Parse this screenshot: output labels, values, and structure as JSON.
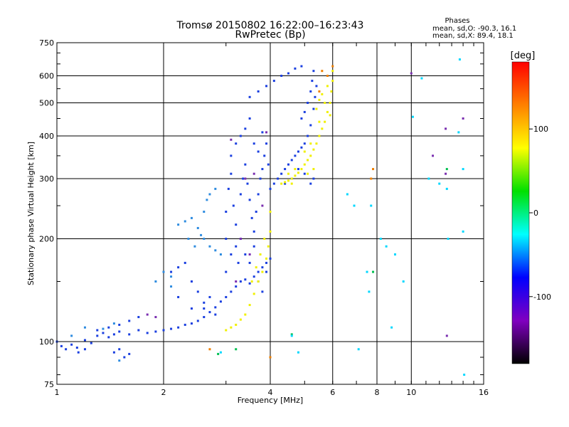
{
  "chart_data": {
    "type": "scatter",
    "title": "Tromsø 20150802 16:22:00–16:23:43",
    "subtitle": "RwPretec (Bp)",
    "xlabel": "Frequency [MHz]",
    "ylabel": "Stationary phase Virtual Height [km]",
    "xscale": "log",
    "yscale": "log",
    "xlim": [
      1,
      16
    ],
    "ylim": [
      75,
      750
    ],
    "xticks": [
      1,
      2,
      4,
      6,
      8,
      10,
      16
    ],
    "yticks": [
      75,
      100,
      200,
      300,
      400,
      500,
      600,
      750
    ],
    "grid": true,
    "phase_info": {
      "title": "Phases",
      "line1": "mean, sd,O: -90.3, 16.1",
      "line2": "mean, sd,X:  89.4, 18.1"
    },
    "colorbar": {
      "label": "[deg]",
      "range": [
        -180,
        180
      ],
      "ticks": [
        100,
        0,
        -100
      ],
      "colors": [
        "#ff0000",
        "#ff8000",
        "#ffff00",
        "#00e000",
        "#00ffff",
        "#0000ff",
        "#8000c0",
        "#000000"
      ]
    },
    "series": [
      {
        "phase_deg": -110,
        "color": "#1a3fe0",
        "points": [
          [
            1.0,
            100
          ],
          [
            1.03,
            97
          ],
          [
            1.06,
            95
          ],
          [
            1.1,
            98
          ],
          [
            1.14,
            96
          ],
          [
            1.2,
            101
          ],
          [
            1.25,
            99
          ],
          [
            1.3,
            104
          ],
          [
            1.35,
            106
          ],
          [
            1.4,
            103
          ],
          [
            1.45,
            105
          ],
          [
            1.5,
            107
          ],
          [
            1.6,
            105
          ],
          [
            1.7,
            108
          ],
          [
            1.8,
            106
          ],
          [
            1.9,
            107
          ],
          [
            2.0,
            108
          ],
          [
            2.1,
            109
          ],
          [
            2.2,
            110
          ],
          [
            2.3,
            112
          ],
          [
            2.4,
            113
          ],
          [
            2.5,
            115
          ],
          [
            2.6,
            118
          ],
          [
            2.7,
            122
          ],
          [
            2.8,
            126
          ],
          [
            2.9,
            131
          ],
          [
            3.0,
            135
          ],
          [
            3.1,
            140
          ],
          [
            3.2,
            145
          ],
          [
            3.3,
            150
          ],
          [
            3.4,
            152
          ],
          [
            3.5,
            148
          ],
          [
            3.6,
            155
          ],
          [
            3.7,
            160
          ],
          [
            3.8,
            165
          ],
          [
            3.9,
            170
          ],
          [
            4.0,
            175
          ],
          [
            3.0,
            200
          ],
          [
            3.0,
            240
          ],
          [
            3.05,
            280
          ],
          [
            3.1,
            310
          ],
          [
            3.1,
            350
          ],
          [
            3.15,
            250
          ],
          [
            3.2,
            220
          ],
          [
            3.2,
            190
          ],
          [
            3.25,
            170
          ],
          [
            3.3,
            270
          ],
          [
            3.35,
            300
          ],
          [
            3.4,
            330
          ],
          [
            3.45,
            290
          ],
          [
            3.5,
            260
          ],
          [
            3.55,
            230
          ],
          [
            3.6,
            210
          ],
          [
            3.65,
            240
          ],
          [
            3.7,
            270
          ],
          [
            3.75,
            300
          ],
          [
            3.8,
            320
          ],
          [
            3.85,
            350
          ],
          [
            3.9,
            380
          ],
          [
            3.95,
            330
          ],
          [
            3.3,
            400
          ],
          [
            3.4,
            420
          ],
          [
            3.5,
            450
          ],
          [
            3.6,
            380
          ],
          [
            3.7,
            360
          ],
          [
            3.8,
            410
          ],
          [
            3.2,
            380
          ],
          [
            3.0,
            160
          ],
          [
            3.1,
            180
          ],
          [
            3.3,
            200
          ],
          [
            3.4,
            180
          ],
          [
            3.5,
            170
          ],
          [
            3.6,
            190
          ],
          [
            3.7,
            150
          ],
          [
            3.8,
            140
          ],
          [
            3.9,
            160
          ],
          [
            4.0,
            280
          ],
          [
            4.1,
            290
          ],
          [
            4.2,
            300
          ],
          [
            4.3,
            310
          ],
          [
            4.4,
            320
          ],
          [
            4.5,
            330
          ],
          [
            4.6,
            340
          ],
          [
            4.7,
            350
          ],
          [
            4.8,
            360
          ],
          [
            4.9,
            370
          ],
          [
            5.0,
            380
          ],
          [
            5.1,
            400
          ],
          [
            5.2,
            430
          ],
          [
            5.3,
            480
          ],
          [
            5.35,
            520
          ],
          [
            5.4,
            560
          ],
          [
            5.1,
            500
          ],
          [
            5.2,
            540
          ],
          [
            5.25,
            580
          ],
          [
            5.3,
            620
          ],
          [
            4.9,
            450
          ],
          [
            5.0,
            470
          ],
          [
            3.5,
            520
          ],
          [
            3.7,
            540
          ],
          [
            3.9,
            560
          ],
          [
            4.1,
            580
          ],
          [
            4.3,
            600
          ],
          [
            4.5,
            610
          ],
          [
            4.7,
            630
          ],
          [
            4.9,
            640
          ],
          [
            2.1,
            160
          ],
          [
            2.2,
            165
          ],
          [
            2.3,
            170
          ],
          [
            2.4,
            150
          ],
          [
            2.5,
            140
          ],
          [
            2.6,
            130
          ],
          [
            2.7,
            135
          ],
          [
            2.2,
            135
          ],
          [
            2.4,
            125
          ],
          [
            2.6,
            125
          ],
          [
            2.8,
            120
          ],
          [
            1.6,
            115
          ],
          [
            1.7,
            118
          ],
          [
            1.5,
            112
          ],
          [
            1.4,
            110
          ],
          [
            1.3,
            108
          ],
          [
            1.2,
            95
          ],
          [
            1.15,
            93
          ],
          [
            1.45,
            93
          ],
          [
            1.5,
            95
          ],
          [
            1.55,
            90
          ],
          [
            1.6,
            92
          ],
          [
            5.2,
            290
          ],
          [
            5.3,
            300
          ],
          [
            5.0,
            310
          ],
          [
            4.8,
            320
          ],
          [
            4.6,
            300
          ],
          [
            4.4,
            290
          ]
        ]
      },
      {
        "phase_deg": -70,
        "color": "#2e8ce0",
        "points": [
          [
            2.2,
            220
          ],
          [
            2.3,
            225
          ],
          [
            2.4,
            230
          ],
          [
            2.5,
            215
          ],
          [
            2.6,
            200
          ],
          [
            2.7,
            190
          ],
          [
            2.8,
            185
          ],
          [
            2.9,
            180
          ],
          [
            2.35,
            200
          ],
          [
            2.45,
            190
          ],
          [
            2.55,
            205
          ],
          [
            2.6,
            240
          ],
          [
            2.7,
            270
          ],
          [
            2.8,
            280
          ],
          [
            2.65,
            260
          ],
          [
            2.0,
            160
          ],
          [
            2.1,
            155
          ],
          [
            1.1,
            104
          ],
          [
            1.2,
            110
          ],
          [
            1.35,
            109
          ],
          [
            1.45,
            113
          ],
          [
            1.5,
            88
          ],
          [
            1.9,
            150
          ],
          [
            2.1,
            145
          ]
        ]
      },
      {
        "phase_deg": 105,
        "color": "#f0f000",
        "points": [
          [
            3.0,
            108
          ],
          [
            3.1,
            110
          ],
          [
            3.2,
            112
          ],
          [
            3.3,
            116
          ],
          [
            3.4,
            120
          ],
          [
            3.5,
            128
          ],
          [
            3.6,
            138
          ],
          [
            3.7,
            150
          ],
          [
            3.8,
            160
          ],
          [
            3.9,
            175
          ],
          [
            3.95,
            190
          ],
          [
            4.0,
            210
          ],
          [
            4.0,
            240
          ],
          [
            3.85,
            200
          ],
          [
            3.75,
            180
          ],
          [
            3.65,
            165
          ],
          [
            3.55,
            150
          ],
          [
            4.3,
            290
          ],
          [
            4.4,
            293
          ],
          [
            4.5,
            296
          ],
          [
            4.6,
            300
          ],
          [
            4.7,
            306
          ],
          [
            4.8,
            312
          ],
          [
            4.9,
            320
          ],
          [
            5.0,
            330
          ],
          [
            5.1,
            340
          ],
          [
            5.2,
            350
          ],
          [
            5.3,
            365
          ],
          [
            5.4,
            380
          ],
          [
            5.5,
            400
          ],
          [
            5.6,
            420
          ],
          [
            5.7,
            440
          ],
          [
            5.8,
            470
          ],
          [
            5.9,
            500
          ],
          [
            5.95,
            540
          ],
          [
            6.0,
            580
          ],
          [
            6.0,
            620
          ],
          [
            5.8,
            560
          ],
          [
            5.6,
            530
          ],
          [
            5.5,
            510
          ],
          [
            5.4,
            480
          ],
          [
            4.5,
            310
          ],
          [
            4.7,
            320
          ],
          [
            5.0,
            360
          ],
          [
            5.2,
            380
          ],
          [
            5.5,
            440
          ],
          [
            5.7,
            500
          ],
          [
            5.9,
            460
          ],
          [
            5.1,
            310
          ],
          [
            5.3,
            320
          ],
          [
            4.6,
            290
          ]
        ]
      },
      {
        "phase_deg": 160,
        "color": "#f08000",
        "points": [
          [
            5.6,
            620
          ],
          [
            5.8,
            600
          ],
          [
            6.0,
            640
          ],
          [
            5.5,
            540
          ],
          [
            4.0,
            90
          ],
          [
            2.7,
            95
          ],
          [
            7.7,
            300
          ],
          [
            7.8,
            320
          ]
        ]
      },
      {
        "phase_deg": -145,
        "color": "#7a2eb0",
        "points": [
          [
            3.4,
            300
          ],
          [
            3.6,
            310
          ],
          [
            3.8,
            250
          ],
          [
            3.3,
            200
          ],
          [
            3.5,
            180
          ],
          [
            3.2,
            150
          ],
          [
            1.8,
            120
          ],
          [
            1.9,
            118
          ],
          [
            12.5,
            420
          ],
          [
            12.5,
            310
          ],
          [
            11.5,
            350
          ],
          [
            14.0,
            450
          ],
          [
            12.6,
            104
          ],
          [
            3.9,
            410
          ],
          [
            3.1,
            390
          ],
          [
            10.0,
            610
          ]
        ]
      },
      {
        "phase_deg": 0,
        "color": "#00c050",
        "points": [
          [
            4.6,
            105
          ],
          [
            7.8,
            160
          ],
          [
            12.6,
            320
          ],
          [
            3.2,
            95
          ],
          [
            2.85,
            92
          ]
        ]
      },
      {
        "phase_deg": -40,
        "color": "#00d8ff",
        "points": [
          [
            7.5,
            160
          ],
          [
            7.6,
            140
          ],
          [
            7.7,
            250
          ],
          [
            8.2,
            200
          ],
          [
            8.5,
            190
          ],
          [
            9.0,
            180
          ],
          [
            9.5,
            150
          ],
          [
            8.8,
            110
          ],
          [
            10.7,
            590
          ],
          [
            10.1,
            455
          ],
          [
            11.2,
            300
          ],
          [
            12.0,
            290
          ],
          [
            12.6,
            280
          ],
          [
            12.7,
            200
          ],
          [
            13.7,
            670
          ],
          [
            13.6,
            410
          ],
          [
            14.0,
            320
          ],
          [
            14.0,
            210
          ],
          [
            14.1,
            80
          ],
          [
            4.6,
            104
          ],
          [
            4.8,
            93
          ],
          [
            2.9,
            93
          ],
          [
            7.1,
            95
          ],
          [
            6.6,
            270
          ],
          [
            6.9,
            250
          ]
        ]
      }
    ]
  }
}
